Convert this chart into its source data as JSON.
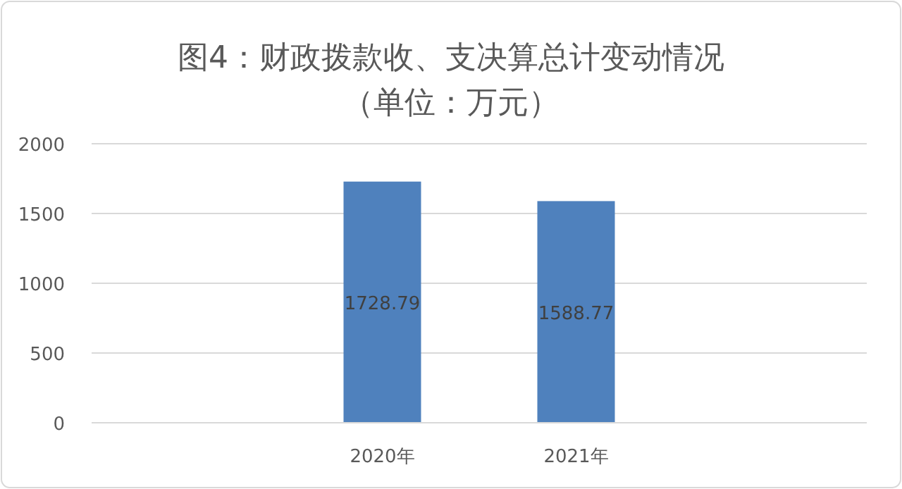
{
  "chart_data": {
    "type": "bar",
    "title": "图4：财政拨款收、支决算总计变动情况",
    "subtitle": "（单位：万元）",
    "categories": [
      null,
      "2020年",
      "2021年",
      null
    ],
    "values": [
      null,
      1728.79,
      1588.77,
      null
    ],
    "color": "#4f81bd",
    "ylim": [
      0,
      2000
    ],
    "yticks": [
      0,
      500,
      1000,
      1500,
      2000
    ],
    "grid": "y",
    "data_labels": true
  }
}
